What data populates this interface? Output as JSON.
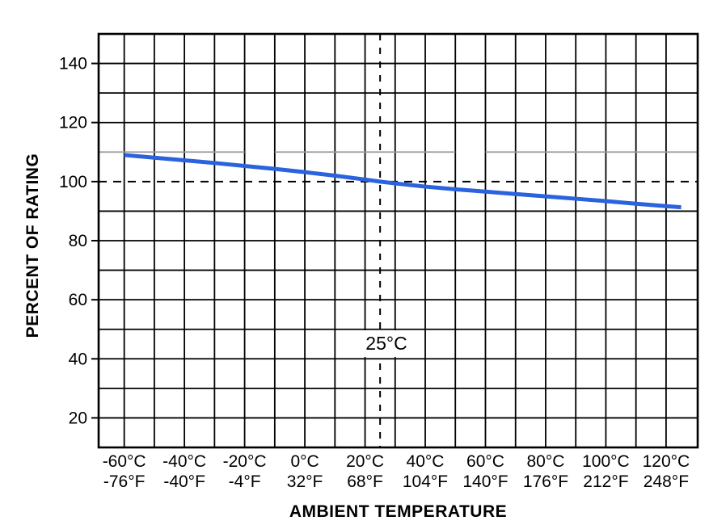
{
  "chart_data": {
    "type": "line",
    "title": "",
    "xlabel": "AMBIENT TEMPERATURE",
    "ylabel": "PERCENT OF RATING",
    "xlim_c": [
      -68.5,
      130.5
    ],
    "ylim": [
      10,
      150
    ],
    "x_gridlines_c": {
      "start": -60,
      "end": 120,
      "step": 10
    },
    "y_gridlines": {
      "start": 20,
      "end": 140,
      "step": 10
    },
    "x_ticks": [
      {
        "c": -60,
        "celsius": "-60°C",
        "fahrenheit": "-76°F"
      },
      {
        "c": -40,
        "celsius": "-40°C",
        "fahrenheit": "-40°F"
      },
      {
        "c": -20,
        "celsius": "-20°C",
        "fahrenheit": "-4°F"
      },
      {
        "c": 0,
        "celsius": "0°C",
        "fahrenheit": "32°F"
      },
      {
        "c": 20,
        "celsius": "20°C",
        "fahrenheit": "68°F"
      },
      {
        "c": 40,
        "celsius": "40°C",
        "fahrenheit": "104°F"
      },
      {
        "c": 60,
        "celsius": "60°C",
        "fahrenheit": "140°F"
      },
      {
        "c": 80,
        "celsius": "80°C",
        "fahrenheit": "176°F"
      },
      {
        "c": 100,
        "celsius": "100°C",
        "fahrenheit": "212°F"
      },
      {
        "c": 120,
        "celsius": "120°C",
        "fahrenheit": "248°F"
      }
    ],
    "y_tick_labels": [
      20,
      40,
      60,
      80,
      100,
      120,
      140
    ],
    "reference_lines": {
      "dashed_horizontal_percent": 100,
      "dashed_vertical_c": 25,
      "gray_line_percent": 110,
      "gray_line_segments_c": [
        [
          -68.5,
          -20
        ],
        [
          -10,
          50
        ],
        [
          60,
          130.5
        ]
      ]
    },
    "annotations": [
      {
        "text": "25°C",
        "x_c": 25,
        "y_percent": 47
      }
    ],
    "series": [
      {
        "name": "percent-of-rating-derating-curve",
        "color": "#2b62de",
        "points": [
          [
            -60,
            109.0
          ],
          [
            -50,
            108.1
          ],
          [
            -40,
            107.2
          ],
          [
            -30,
            106.3
          ],
          [
            -20,
            105.3
          ],
          [
            -10,
            104.3
          ],
          [
            0,
            103.2
          ],
          [
            10,
            102.0
          ],
          [
            20,
            100.7
          ],
          [
            25,
            100.0
          ],
          [
            30,
            99.4
          ],
          [
            40,
            98.3
          ],
          [
            50,
            97.4
          ],
          [
            60,
            96.6
          ],
          [
            70,
            95.8
          ],
          [
            80,
            95.0
          ],
          [
            90,
            94.2
          ],
          [
            100,
            93.4
          ],
          [
            110,
            92.5
          ],
          [
            120,
            91.7
          ],
          [
            125,
            91.3
          ]
        ]
      }
    ],
    "colors": {
      "grid": "#000000",
      "frame": "#000000",
      "gray_gridline": "#9a9a9a",
      "dashed": "#000000",
      "text": "#000000",
      "background": "#ffffff"
    }
  }
}
